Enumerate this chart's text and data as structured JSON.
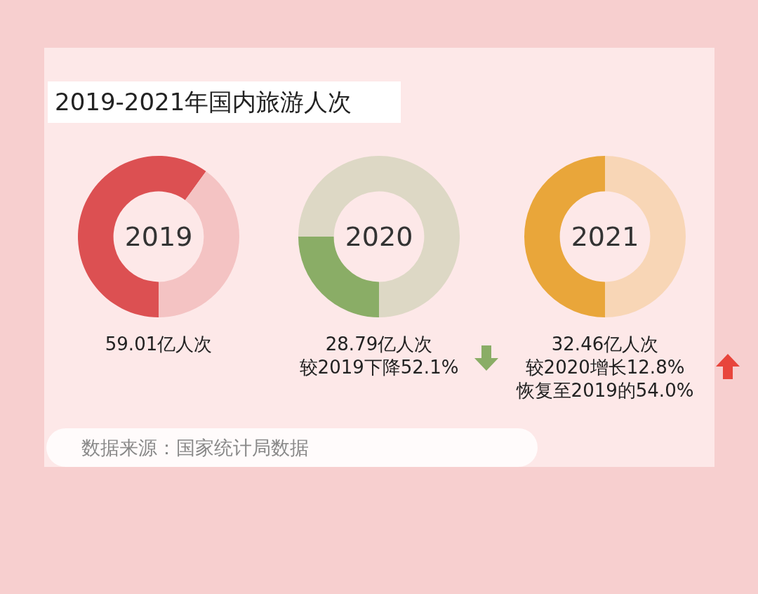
{
  "chart_data": [
    {
      "type": "other",
      "title": "2019-2021年国内旅游人次",
      "annotations": [
        "数据来源：国家统计局数据"
      ]
    },
    {
      "type": "donut",
      "title": "2019",
      "categories": [
        null,
        null
      ],
      "values": [
        60,
        40
      ],
      "colors": [
        "#dc5052",
        "#f4c3c3"
      ],
      "annotations": [
        "59.01亿人次"
      ]
    },
    {
      "type": "donut",
      "title": "2020",
      "categories": [
        null,
        null
      ],
      "values": [
        25,
        75
      ],
      "colors": [
        "#8aad66",
        "#ddd8c5"
      ],
      "annotations": [
        "28.79亿人次",
        "较2019下降52.1%"
      ]
    },
    {
      "type": "donut",
      "title": "2021",
      "categories": [
        null,
        null
      ],
      "values": [
        50,
        50
      ],
      "colors": [
        "#e9a63a",
        "#f8d6b6"
      ],
      "annotations": [
        "32.46亿人次",
        "较2020增长12.8%",
        "恢复至2019的54.0%"
      ]
    }
  ]
}
